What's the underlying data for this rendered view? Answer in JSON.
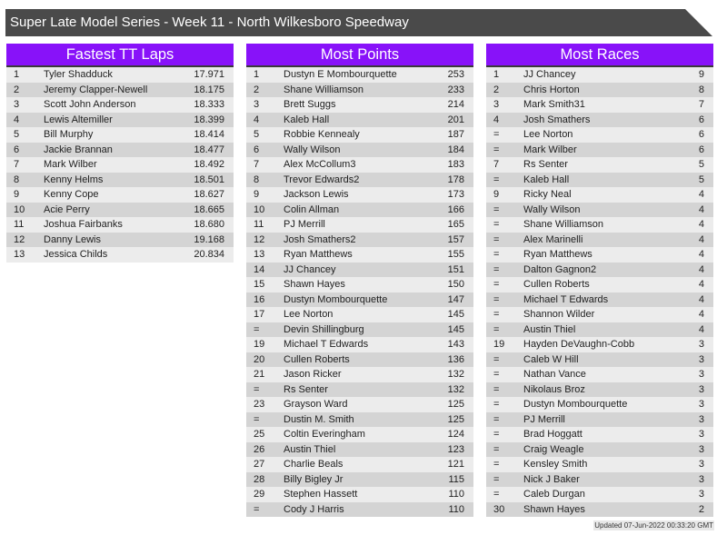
{
  "title": "Super Late Model Series - Week 11 - North Wilkesboro Speedway",
  "updated": "Updated 07-Jun-2022 00:33:20 GMT",
  "colors": {
    "header": "#8812f9",
    "title_bar": "#4a4a4a",
    "row_light": "#ececec",
    "row_dark": "#d4d4d4"
  },
  "tables": [
    {
      "key": "fastest",
      "title": "Fastest TT Laps",
      "rows": [
        [
          "1",
          "Tyler Shadduck",
          "17.971"
        ],
        [
          "2",
          "Jeremy Clapper-Newell",
          "18.175"
        ],
        [
          "3",
          "Scott John Anderson",
          "18.333"
        ],
        [
          "4",
          "Lewis Altemiller",
          "18.399"
        ],
        [
          "5",
          "Bill Murphy",
          "18.414"
        ],
        [
          "6",
          "Jackie Brannan",
          "18.477"
        ],
        [
          "7",
          "Mark Wilber",
          "18.492"
        ],
        [
          "8",
          "Kenny Helms",
          "18.501"
        ],
        [
          "9",
          "Kenny Cope",
          "18.627"
        ],
        [
          "10",
          "Acie Perry",
          "18.665"
        ],
        [
          "11",
          "Joshua Fairbanks",
          "18.680"
        ],
        [
          "12",
          "Danny Lewis",
          "19.168"
        ],
        [
          "13",
          "Jessica Childs",
          "20.834"
        ]
      ]
    },
    {
      "key": "points",
      "title": "Most Points",
      "rows": [
        [
          "1",
          "Dustyn E Mombourquette",
          "253"
        ],
        [
          "2",
          "Shane Williamson",
          "233"
        ],
        [
          "3",
          "Brett Suggs",
          "214"
        ],
        [
          "4",
          "Kaleb Hall",
          "201"
        ],
        [
          "5",
          "Robbie Kennealy",
          "187"
        ],
        [
          "6",
          "Wally Wilson",
          "184"
        ],
        [
          "7",
          "Alex McCollum3",
          "183"
        ],
        [
          "8",
          "Trevor Edwards2",
          "178"
        ],
        [
          "9",
          "Jackson Lewis",
          "173"
        ],
        [
          "10",
          "Colin Allman",
          "166"
        ],
        [
          "11",
          "PJ Merrill",
          "165"
        ],
        [
          "12",
          "Josh Smathers2",
          "157"
        ],
        [
          "13",
          "Ryan Matthews",
          "155"
        ],
        [
          "14",
          "JJ Chancey",
          "151"
        ],
        [
          "15",
          "Shawn Hayes",
          "150"
        ],
        [
          "16",
          "Dustyn Mombourquette",
          "147"
        ],
        [
          "17",
          "Lee Norton",
          "145"
        ],
        [
          "=",
          "Devin Shillingburg",
          "145"
        ],
        [
          "19",
          "Michael T Edwards",
          "143"
        ],
        [
          "20",
          "Cullen Roberts",
          "136"
        ],
        [
          "21",
          "Jason Ricker",
          "132"
        ],
        [
          "=",
          "Rs Senter",
          "132"
        ],
        [
          "23",
          "Grayson Ward",
          "125"
        ],
        [
          "=",
          "Dustin M. Smith",
          "125"
        ],
        [
          "25",
          "Coltin Everingham",
          "124"
        ],
        [
          "26",
          "Austin Thiel",
          "123"
        ],
        [
          "27",
          "Charlie Beals",
          "121"
        ],
        [
          "28",
          "Billy Bigley Jr",
          "115"
        ],
        [
          "29",
          "Stephen Hassett",
          "110"
        ],
        [
          "=",
          "Cody J Harris",
          "110"
        ]
      ]
    },
    {
      "key": "races",
      "title": "Most Races",
      "rows": [
        [
          "1",
          "JJ Chancey",
          "9"
        ],
        [
          "2",
          "Chris Horton",
          "8"
        ],
        [
          "3",
          "Mark Smith31",
          "7"
        ],
        [
          "4",
          "Josh Smathers",
          "6"
        ],
        [
          "=",
          "Lee Norton",
          "6"
        ],
        [
          "=",
          "Mark Wilber",
          "6"
        ],
        [
          "7",
          "Rs Senter",
          "5"
        ],
        [
          "=",
          "Kaleb Hall",
          "5"
        ],
        [
          "9",
          "Ricky Neal",
          "4"
        ],
        [
          "=",
          "Wally Wilson",
          "4"
        ],
        [
          "=",
          "Shane Williamson",
          "4"
        ],
        [
          "=",
          "Alex Marinelli",
          "4"
        ],
        [
          "=",
          "Ryan Matthews",
          "4"
        ],
        [
          "=",
          "Dalton Gagnon2",
          "4"
        ],
        [
          "=",
          "Cullen Roberts",
          "4"
        ],
        [
          "=",
          "Michael T Edwards",
          "4"
        ],
        [
          "=",
          "Shannon Wilder",
          "4"
        ],
        [
          "=",
          "Austin Thiel",
          "4"
        ],
        [
          "19",
          "Hayden DeVaughn-Cobb",
          "3"
        ],
        [
          "=",
          "Caleb W Hill",
          "3"
        ],
        [
          "=",
          "Nathan Vance",
          "3"
        ],
        [
          "=",
          "Nikolaus Broz",
          "3"
        ],
        [
          "=",
          "Dustyn Mombourquette",
          "3"
        ],
        [
          "=",
          "PJ Merrill",
          "3"
        ],
        [
          "=",
          "Brad Hoggatt",
          "3"
        ],
        [
          "=",
          "Craig Weagle",
          "3"
        ],
        [
          "=",
          "Kensley Smith",
          "3"
        ],
        [
          "=",
          "Nick J Baker",
          "3"
        ],
        [
          "=",
          "Caleb Durgan",
          "3"
        ],
        [
          "30",
          "Shawn Hayes",
          "2"
        ]
      ]
    }
  ]
}
